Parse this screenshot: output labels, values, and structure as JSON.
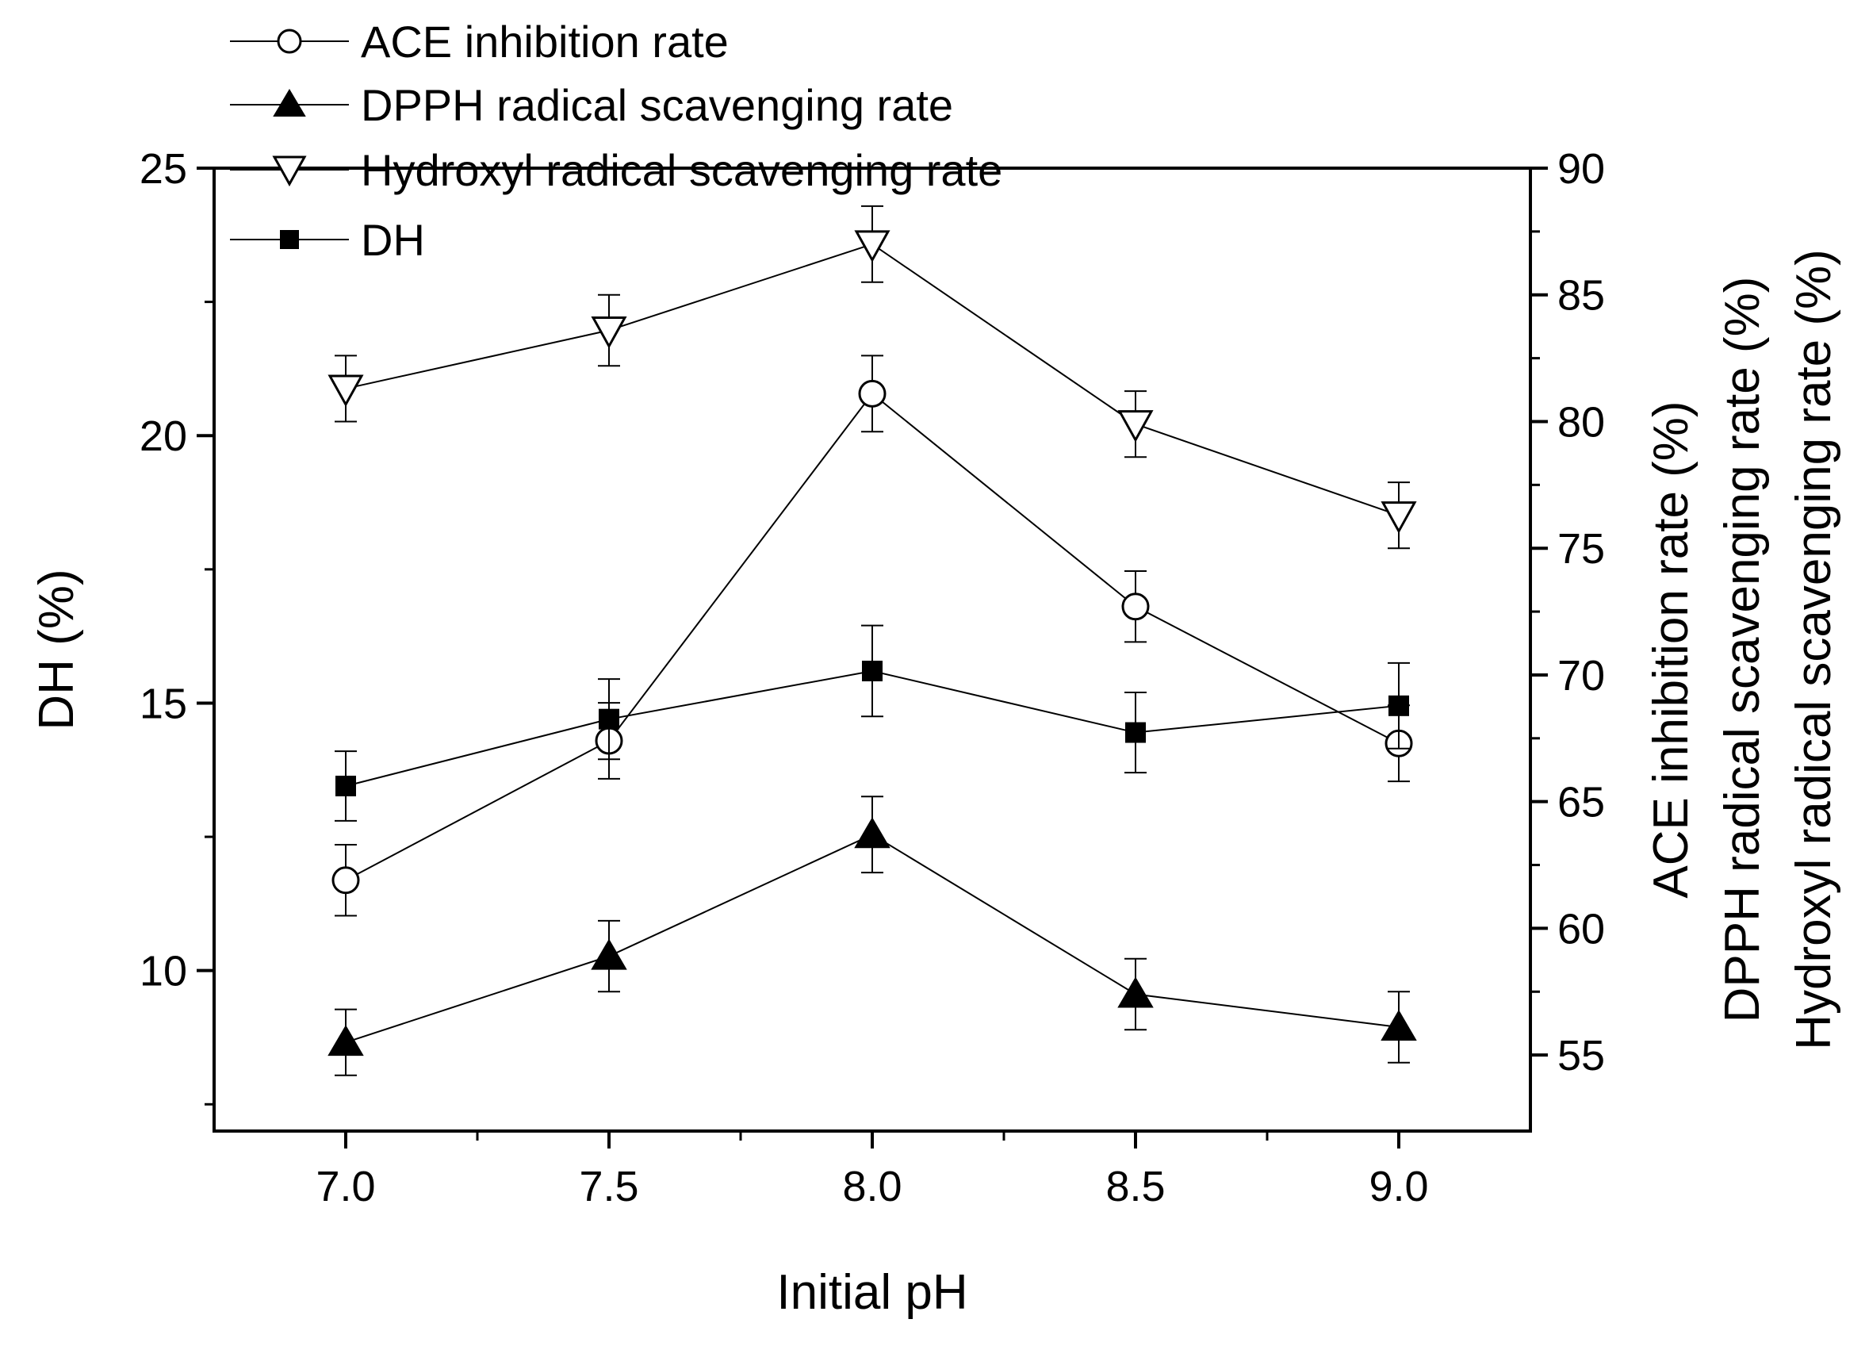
{
  "chart_data": {
    "type": "line",
    "title": "",
    "xlabel": "Initial pH",
    "ylabel_left": "DH (%)",
    "ylabel_right": [
      "ACE inhibition rate (%)",
      "DPPH radical scavenging rate (%)",
      "Hydroxyl radical scavenging rate (%)"
    ],
    "x": [
      7.0,
      7.5,
      8.0,
      8.5,
      9.0
    ],
    "x_tick_labels": [
      "7.0",
      "7.5",
      "8.0",
      "8.5",
      "9.0"
    ],
    "xlim": [
      6.75,
      9.25
    ],
    "ylim_left": [
      7.0,
      25.0
    ],
    "ylim_right": [
      52.0,
      90.0
    ],
    "y_left_ticks": [
      "10",
      "15",
      "20",
      "25"
    ],
    "y_right_ticks": [
      "55",
      "60",
      "65",
      "70",
      "75",
      "80",
      "85",
      "90"
    ],
    "grid": false,
    "legend_position": "top-left",
    "series": [
      {
        "name": "ACE inhibition rate",
        "axis": "right",
        "marker": "open-circle",
        "values": [
          61.9,
          67.4,
          81.1,
          72.7,
          67.3
        ],
        "errors": [
          1.4,
          1.5,
          1.5,
          1.4,
          1.5
        ]
      },
      {
        "name": "DPPH radical scavenging rate",
        "axis": "right",
        "marker": "filled-triangle-up",
        "values": [
          55.5,
          58.9,
          63.7,
          57.4,
          56.1
        ],
        "errors": [
          1.3,
          1.4,
          1.5,
          1.4,
          1.4
        ]
      },
      {
        "name": "Hydroxyl radical scavenging rate",
        "axis": "right",
        "marker": "open-triangle-down",
        "values": [
          81.3,
          83.6,
          87.0,
          79.9,
          76.3
        ],
        "errors": [
          1.3,
          1.4,
          1.5,
          1.3,
          1.3
        ]
      },
      {
        "name": "DH",
        "axis": "left",
        "marker": "filled-square",
        "values": [
          13.45,
          14.7,
          15.6,
          14.45,
          14.95
        ],
        "errors": [
          0.65,
          0.75,
          0.85,
          0.75,
          0.8
        ]
      }
    ]
  }
}
